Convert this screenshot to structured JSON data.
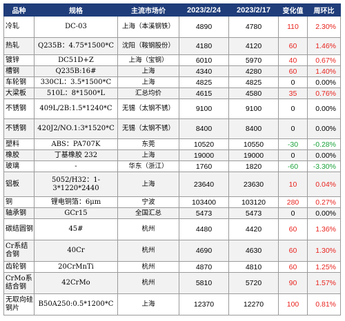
{
  "colors": {
    "header_bg": "#1f3d7a",
    "header_text": "#ffffff",
    "up": "#e8231e",
    "down": "#1aa23a",
    "flat": "#000000"
  },
  "headers": {
    "product": "品种",
    "spec": "规格",
    "market": "主流市场价",
    "date1": "2023/2/24",
    "date2": "2023/2/17",
    "change": "变化值",
    "pct": "周环比"
  },
  "rows": [
    {
      "product": "冷轧",
      "spec": "DC-03",
      "market": "上海（本溪钢铁）",
      "v1": "4890",
      "v2": "4780",
      "change": "110",
      "pct": "2.30%",
      "dir": "up"
    },
    {
      "product": "热轧",
      "spec": "Q235B：4.75*1500*C",
      "market": "沈阳（鞍钢股份）",
      "v1": "4180",
      "v2": "4120",
      "change": "60",
      "pct": "1.46%",
      "dir": "up"
    },
    {
      "product": "镀锌",
      "spec": "DC51D+Z",
      "market": "上海（宝钢）",
      "v1": "6010",
      "v2": "5970",
      "change": "40",
      "pct": "0.67%",
      "dir": "up"
    },
    {
      "product": "槽钢",
      "spec": "Q235B:16#",
      "market": "上海",
      "v1": "4340",
      "v2": "4280",
      "change": "60",
      "pct": "1.40%",
      "dir": "up"
    },
    {
      "product": "车轮钢",
      "spec": "330CL：3.5*1500*C",
      "market": "上海",
      "v1": "4825",
      "v2": "4825",
      "change": "0",
      "pct": "0.00%",
      "dir": "flat"
    },
    {
      "product": "大梁板",
      "spec": "510L：8*1500*L",
      "market": "汇总均价",
      "v1": "4615",
      "v2": "4580",
      "change": "35",
      "pct": "0.76%",
      "dir": "up"
    },
    {
      "product": "不锈钢",
      "spec": "409L/2B:1.5*1240*C",
      "market": "无锡（太钢不锈）",
      "v1": "9100",
      "v2": "9100",
      "change": "0",
      "pct": "0.00%",
      "dir": "flat"
    },
    {
      "product": "不锈钢",
      "spec": "420J2/NO.1:3*1520*C",
      "market": "无锡（太钢不锈）",
      "v1": "8400",
      "v2": "8400",
      "change": "0",
      "pct": "0.00%",
      "dir": "flat"
    },
    {
      "product": "塑料",
      "spec": "ABS：PA707K",
      "market": "东莞",
      "v1": "10520",
      "v2": "10550",
      "change": "-30",
      "pct": "-0.28%",
      "dir": "down"
    },
    {
      "product": "橡胶",
      "spec": "丁基橡胶 232",
      "market": "上海",
      "v1": "19000",
      "v2": "19000",
      "change": "0",
      "pct": "0.00%",
      "dir": "flat"
    },
    {
      "product": "玻璃",
      "spec": "-",
      "market": "华东（浙江）",
      "v1": "1760",
      "v2": "1820",
      "change": "-60",
      "pct": "-3.30%",
      "dir": "down"
    },
    {
      "product": "铝板",
      "spec": "5052/H32：1-3*1220*2440",
      "market": "上海",
      "v1": "23640",
      "v2": "23630",
      "change": "10",
      "pct": "0.04%",
      "dir": "up"
    },
    {
      "product": "铜",
      "spec": "锂电铜箔：6μm",
      "market": "宁波",
      "v1": "103400",
      "v2": "103120",
      "change": "280",
      "pct": "0.27%",
      "dir": "up"
    },
    {
      "product": "轴承钢",
      "spec": "GCr15",
      "market": "全国汇总",
      "v1": "5473",
      "v2": "5473",
      "change": "0",
      "pct": "0.00%",
      "dir": "flat"
    },
    {
      "product": "碳结圆钢",
      "spec": "45#",
      "market": "杭州",
      "v1": "4480",
      "v2": "4420",
      "change": "60",
      "pct": "1.36%",
      "dir": "up"
    },
    {
      "product": "Cr系结合钢",
      "spec": "40Cr",
      "market": "杭州",
      "v1": "4690",
      "v2": "4630",
      "change": "60",
      "pct": "1.30%",
      "dir": "up"
    },
    {
      "product": "齿轮钢",
      "spec": "20CrMnTi",
      "market": "杭州",
      "v1": "4870",
      "v2": "4810",
      "change": "60",
      "pct": "1.25%",
      "dir": "up"
    },
    {
      "product": "CrMo系结合钢",
      "spec": "42CrMo",
      "market": "杭州",
      "v1": "5810",
      "v2": "5720",
      "change": "90",
      "pct": "1.57%",
      "dir": "up"
    },
    {
      "product": "无取向硅钢片",
      "spec": "B50A250:0.5*1200*C",
      "market": "上海",
      "v1": "12370",
      "v2": "12270",
      "change": "100",
      "pct": "0.81%",
      "dir": "up"
    }
  ]
}
